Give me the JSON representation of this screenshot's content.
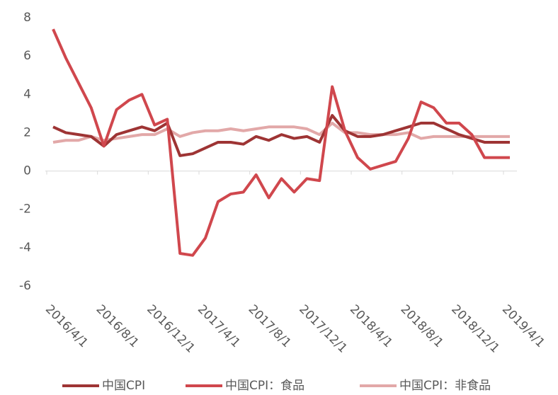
{
  "chart_data": {
    "type": "line",
    "categories": [
      "2016/4/1",
      null,
      null,
      null,
      "2016/8/1",
      null,
      null,
      null,
      "2016/12/1",
      null,
      null,
      null,
      "2017/4/1",
      null,
      null,
      null,
      "2017/8/1",
      null,
      null,
      null,
      "2017/12/1",
      null,
      null,
      null,
      "2018/4/1",
      null,
      null,
      null,
      "2018/8/1",
      null,
      null,
      null,
      "2018/12/1",
      null,
      null,
      null,
      "2019/4/1"
    ],
    "series": [
      {
        "name": "中国CPI",
        "color": "#9e3434",
        "values": [
          2.3,
          2.0,
          1.9,
          1.8,
          1.3,
          1.9,
          2.1,
          2.3,
          2.1,
          2.5,
          0.8,
          0.9,
          1.2,
          1.5,
          1.5,
          1.4,
          1.8,
          1.6,
          1.9,
          1.7,
          1.8,
          1.5,
          2.9,
          2.1,
          1.8,
          1.8,
          1.9,
          2.1,
          2.3,
          2.5,
          2.5,
          2.2,
          1.9,
          1.7,
          1.5,
          1.5,
          1.5
        ]
      },
      {
        "name": "中国CPI：食品",
        "color": "#d0474d",
        "values": [
          7.4,
          5.9,
          4.6,
          3.3,
          1.3,
          3.2,
          3.7,
          4.0,
          2.4,
          2.7,
          -4.3,
          -4.4,
          -3.5,
          -1.6,
          -1.2,
          -1.1,
          -0.2,
          -1.4,
          -0.4,
          -1.1,
          -0.4,
          -0.5,
          4.4,
          2.1,
          0.7,
          0.1,
          0.3,
          0.5,
          1.7,
          3.6,
          3.3,
          2.5,
          2.5,
          1.9,
          0.7,
          0.7,
          0.7
        ]
      },
      {
        "name": "中国CPI：非食品",
        "color": "#e2a8a8",
        "values": [
          1.5,
          1.6,
          1.6,
          1.8,
          1.6,
          1.7,
          1.8,
          1.9,
          1.9,
          2.2,
          1.8,
          2.0,
          2.1,
          2.1,
          2.2,
          2.1,
          2.2,
          2.3,
          2.3,
          2.3,
          2.2,
          1.9,
          2.5,
          2.0,
          2.0,
          1.9,
          1.9,
          1.9,
          2.0,
          1.7,
          1.8,
          1.8,
          1.8,
          1.8,
          1.8,
          1.8,
          1.8
        ]
      }
    ],
    "ylim": [
      -6,
      8
    ],
    "yticks": [
      -6,
      -4,
      -2,
      0,
      2,
      4,
      6,
      8
    ],
    "grid": false
  }
}
